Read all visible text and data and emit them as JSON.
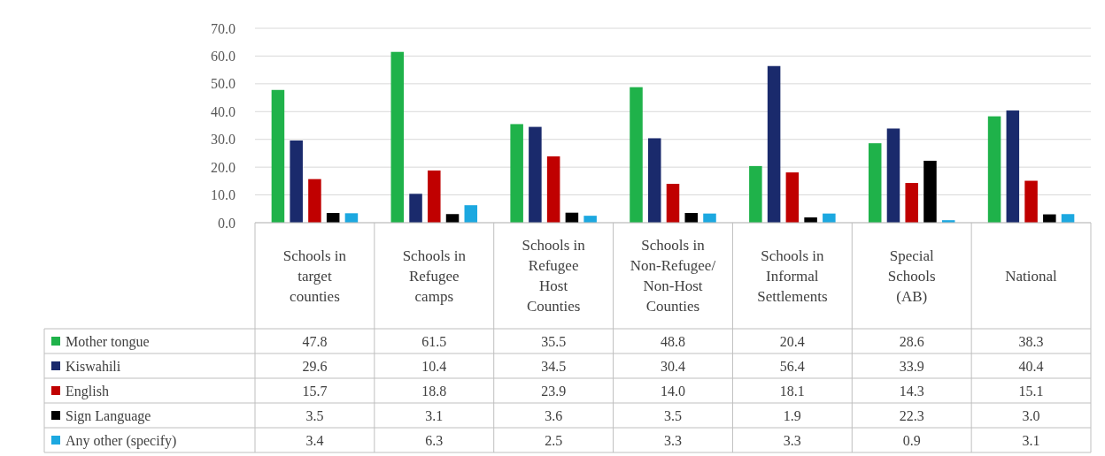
{
  "chart_data": {
    "type": "bar",
    "categories": [
      "Schools in target counties",
      "Schools in Refugee camps",
      "Schools in Refugee Host Counties",
      "Schools in Non-Refugee/Non-Host Counties",
      "Schools in Informal Settlements",
      "Special Schools (AB)",
      "National"
    ],
    "series": [
      {
        "name": "Mother tongue",
        "color": "#1fb24a",
        "values": [
          47.8,
          61.5,
          35.5,
          48.8,
          20.4,
          28.6,
          38.3
        ],
        "value_labels": [
          "47.8",
          "61.5",
          "35.5",
          "48.8",
          "20.4",
          "28.6",
          "38.3"
        ]
      },
      {
        "name": "Kiswahili",
        "color": "#1a2a6c",
        "values": [
          29.6,
          10.4,
          34.5,
          30.4,
          56.4,
          33.9,
          40.4
        ],
        "value_labels": [
          "29.6",
          "10.4",
          "34.5",
          "30.4",
          "56.4",
          "33.9",
          "40.4"
        ]
      },
      {
        "name": "English",
        "color": "#c00000",
        "values": [
          15.7,
          18.8,
          23.9,
          14.0,
          18.1,
          14.3,
          15.1
        ],
        "value_labels": [
          "15.7",
          "18.8",
          "23.9",
          "14.0",
          "18.1",
          "14.3",
          "15.1"
        ]
      },
      {
        "name": "Sign Language",
        "color": "#000000",
        "values": [
          3.5,
          3.1,
          3.6,
          3.5,
          1.9,
          22.3,
          3.0
        ],
        "value_labels": [
          "3.5",
          "3.1",
          "3.6",
          "3.5",
          "1.9",
          "22.3",
          "3.0"
        ]
      },
      {
        "name": "Any other (specify)",
        "color": "#1ca8e0",
        "values": [
          3.4,
          6.3,
          2.5,
          3.3,
          3.3,
          0.9,
          3.1
        ],
        "value_labels": [
          "3.4",
          "6.3",
          "2.5",
          "3.3",
          "3.3",
          "0.9",
          "3.1"
        ]
      }
    ],
    "ylim": [
      0,
      70
    ],
    "yticks": [
      {
        "value": 0,
        "label": "0.0"
      },
      {
        "value": 10,
        "label": "10.0"
      },
      {
        "value": 20,
        "label": "20.0"
      },
      {
        "value": 30,
        "label": "30.0"
      },
      {
        "value": 40,
        "label": "40.0"
      },
      {
        "value": 50,
        "label": "50.0"
      },
      {
        "value": 60,
        "label": "60.0"
      },
      {
        "value": 70,
        "label": "70.0"
      }
    ],
    "grid": "y",
    "legend": "bottom"
  }
}
